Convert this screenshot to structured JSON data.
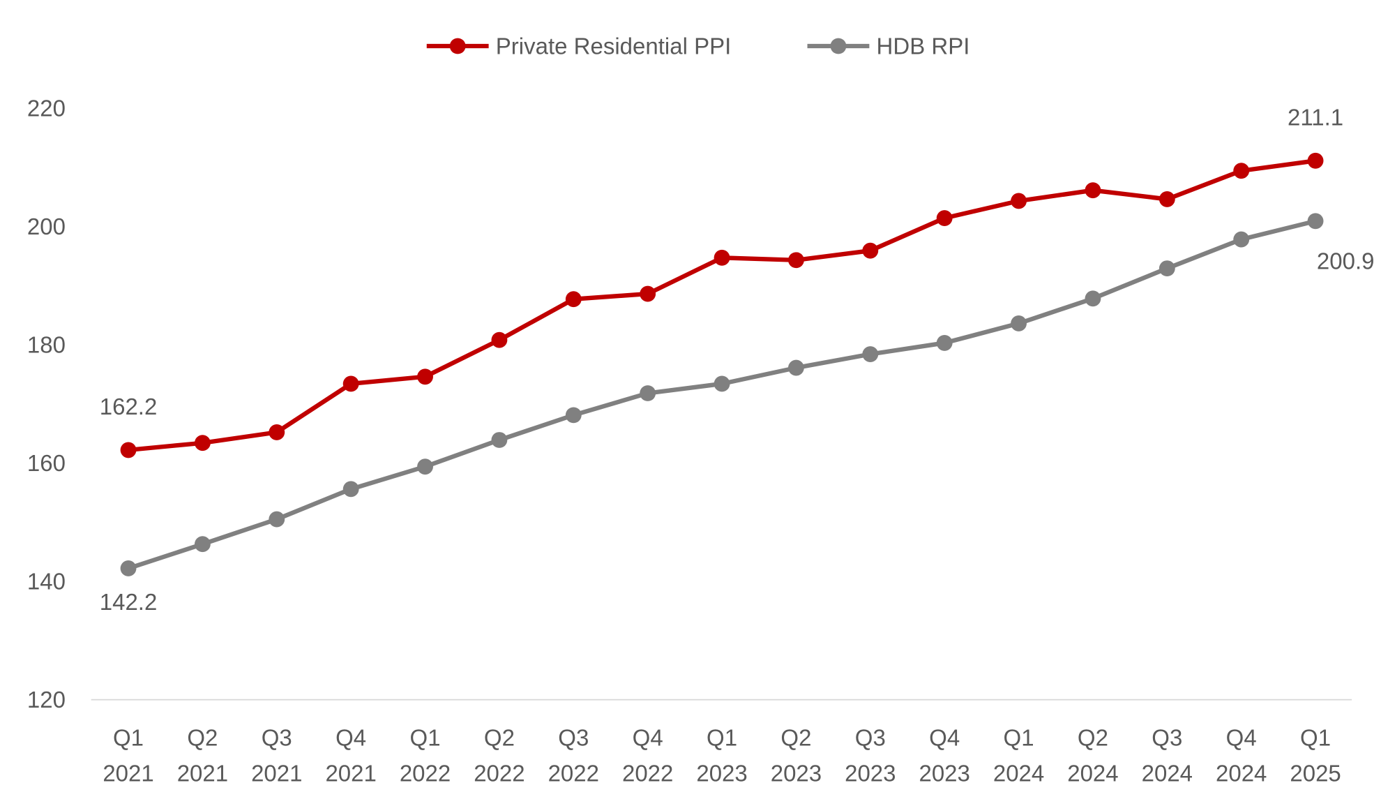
{
  "chart_data": {
    "type": "line",
    "title": "",
    "xlabel": "",
    "ylabel": "",
    "ylim": [
      120,
      220
    ],
    "yticks": [
      120,
      140,
      160,
      180,
      200,
      220
    ],
    "grid": false,
    "legend_position": "top",
    "categories": [
      [
        "Q1",
        "2021"
      ],
      [
        "Q2",
        "2021"
      ],
      [
        "Q3",
        "2021"
      ],
      [
        "Q4",
        "2021"
      ],
      [
        "Q1",
        "2022"
      ],
      [
        "Q2",
        "2022"
      ],
      [
        "Q3",
        "2022"
      ],
      [
        "Q4",
        "2022"
      ],
      [
        "Q1",
        "2023"
      ],
      [
        "Q2",
        "2023"
      ],
      [
        "Q3",
        "2023"
      ],
      [
        "Q4",
        "2023"
      ],
      [
        "Q1",
        "2024"
      ],
      [
        "Q2",
        "2024"
      ],
      [
        "Q3",
        "2024"
      ],
      [
        "Q4",
        "2024"
      ],
      [
        "Q1",
        "2025"
      ]
    ],
    "series": [
      {
        "name": "Private Residential PPI",
        "color": "#C00000",
        "values": [
          162.2,
          163.4,
          165.2,
          173.4,
          174.6,
          180.8,
          187.7,
          188.6,
          194.7,
          194.3,
          195.9,
          201.4,
          204.3,
          206.1,
          204.6,
          209.4,
          211.1
        ]
      },
      {
        "name": "HDB RPI",
        "color": "#808080",
        "values": [
          142.2,
          146.3,
          150.5,
          155.6,
          159.4,
          163.9,
          168.1,
          171.8,
          173.4,
          176.1,
          178.4,
          180.3,
          183.6,
          187.8,
          192.9,
          197.8,
          200.9
        ]
      }
    ],
    "annotations": [
      {
        "series": 0,
        "index": 0,
        "text": "162.2",
        "position": "above"
      },
      {
        "series": 0,
        "index": 16,
        "text": "211.1",
        "position": "above"
      },
      {
        "series": 1,
        "index": 0,
        "text": "142.2",
        "position": "below"
      },
      {
        "series": 1,
        "index": 16,
        "text": "200.9",
        "position": "below-right"
      }
    ]
  }
}
